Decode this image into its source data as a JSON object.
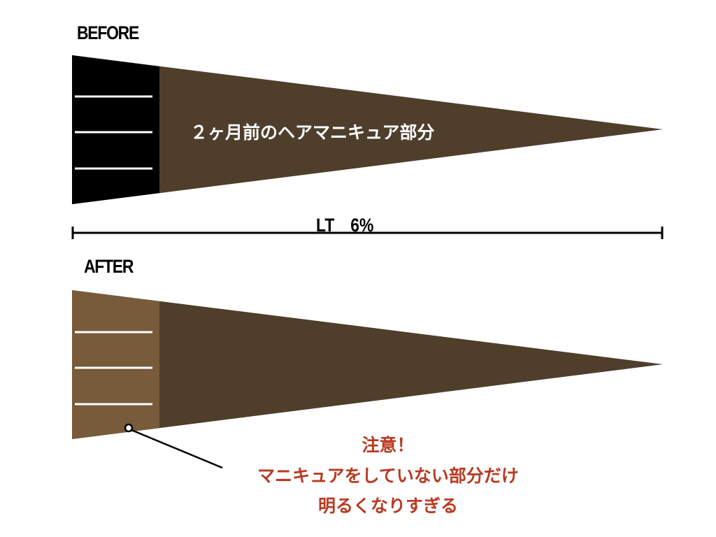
{
  "before": {
    "label": "BEFORE",
    "inner_text": "２ヶ月前のヘアマニキュア部分",
    "root_color": "#000000",
    "body_color": "#4F3E2C"
  },
  "measure": {
    "label": "LT　6%"
  },
  "after": {
    "label": "AFTER",
    "root_color": "#775B3A",
    "body_color": "#4F3E2C"
  },
  "note": {
    "line1": "注意！",
    "line2": "マニキュアをしていない部分だけ",
    "line3": "明るくなりすぎる",
    "color": "#B83A23"
  }
}
